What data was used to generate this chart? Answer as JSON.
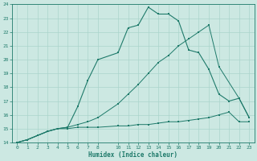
{
  "xlabel": "Humidex (Indice chaleur)",
  "xlim": [
    -0.5,
    23.5
  ],
  "ylim": [
    14,
    24
  ],
  "xticks": [
    0,
    1,
    2,
    3,
    4,
    5,
    6,
    7,
    8,
    10,
    11,
    12,
    13,
    14,
    15,
    16,
    17,
    18,
    19,
    20,
    21,
    22,
    23
  ],
  "yticks": [
    14,
    15,
    16,
    17,
    18,
    19,
    20,
    21,
    22,
    23,
    24
  ],
  "background_color": "#cce8e2",
  "line_color": "#1e7a6a",
  "grid_color": "#aad4cc",
  "line1_x": [
    0,
    1,
    2,
    3,
    4,
    5,
    6,
    7,
    8,
    10,
    11,
    12,
    13,
    14,
    15,
    16,
    17,
    18,
    19,
    20,
    21,
    22,
    23
  ],
  "line1_y": [
    14.0,
    14.2,
    14.5,
    14.8,
    15.0,
    15.0,
    15.1,
    15.1,
    15.1,
    15.2,
    15.2,
    15.3,
    15.3,
    15.4,
    15.5,
    15.5,
    15.6,
    15.7,
    15.8,
    16.0,
    16.2,
    15.5,
    15.5
  ],
  "line2_x": [
    0,
    1,
    2,
    3,
    4,
    5,
    6,
    7,
    8,
    10,
    11,
    12,
    13,
    14,
    15,
    16,
    17,
    18,
    19,
    20,
    21,
    22,
    23
  ],
  "line2_y": [
    14.0,
    14.2,
    14.5,
    14.8,
    15.0,
    15.1,
    16.6,
    18.5,
    20.0,
    20.5,
    22.3,
    22.5,
    23.8,
    23.3,
    23.3,
    22.8,
    20.7,
    20.5,
    19.3,
    17.5,
    17.0,
    17.2,
    15.8
  ],
  "line3_x": [
    0,
    1,
    2,
    3,
    4,
    5,
    6,
    7,
    8,
    10,
    11,
    12,
    13,
    14,
    15,
    16,
    17,
    18,
    19,
    20,
    22,
    23
  ],
  "line3_y": [
    14.0,
    14.2,
    14.5,
    14.8,
    15.0,
    15.1,
    15.3,
    15.5,
    15.8,
    16.8,
    17.5,
    18.2,
    19.0,
    19.8,
    20.3,
    21.0,
    21.5,
    22.0,
    22.5,
    19.5,
    17.2,
    15.8
  ]
}
